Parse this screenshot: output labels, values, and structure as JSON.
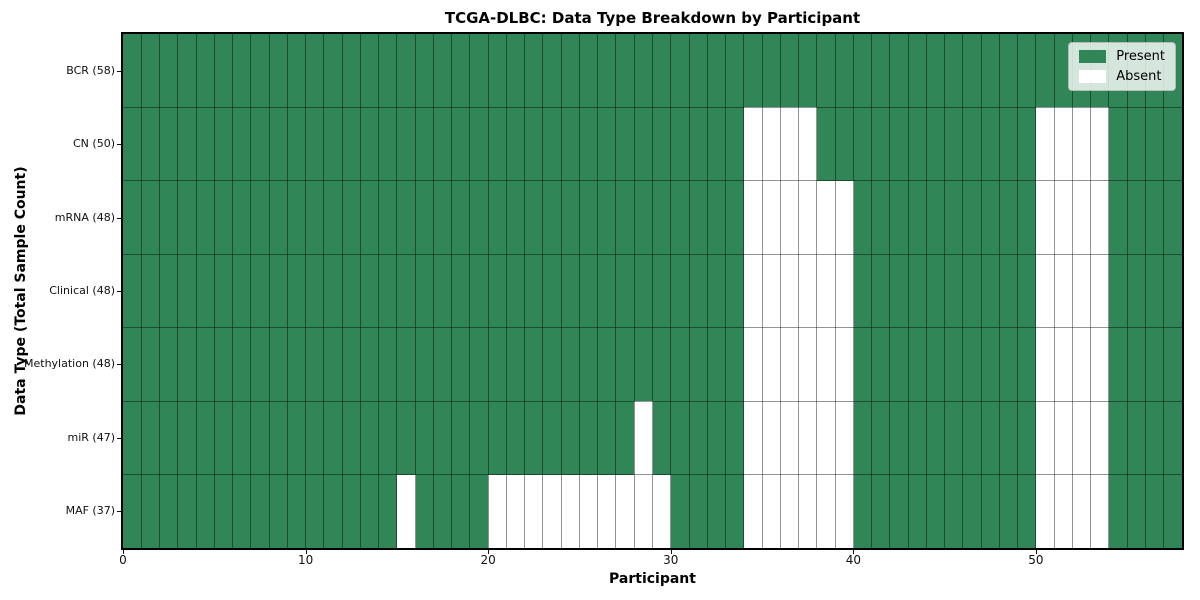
{
  "chart_data": {
    "type": "heatmap",
    "title": "TCGA-DLBC: Data Type Breakdown by Participant",
    "xlabel": "Participant",
    "ylabel": "Data Type (Total Sample Count)",
    "n_participants": 58,
    "x_range": [
      0,
      58
    ],
    "x_ticks": [
      0,
      10,
      20,
      30,
      40,
      50
    ],
    "grid": true,
    "legend_position": "upper right",
    "legend": [
      {
        "id": "present",
        "label": "Present",
        "color": "#318657"
      },
      {
        "id": "absent",
        "label": "Absent",
        "color": "#ffffff"
      }
    ],
    "rows": [
      {
        "label": "BCR (58)",
        "total_samples": 58,
        "absent_participants": []
      },
      {
        "label": "CN (50)",
        "total_samples": 50,
        "absent_participants": [
          34,
          35,
          36,
          37,
          50,
          51,
          52,
          53
        ]
      },
      {
        "label": "mRNA (48)",
        "total_samples": 48,
        "absent_participants": [
          34,
          35,
          36,
          37,
          38,
          39,
          50,
          51,
          52,
          53
        ]
      },
      {
        "label": "Clinical (48)",
        "total_samples": 48,
        "absent_participants": [
          34,
          35,
          36,
          37,
          38,
          39,
          50,
          51,
          52,
          53
        ]
      },
      {
        "label": "Methylation (48)",
        "total_samples": 48,
        "absent_participants": [
          34,
          35,
          36,
          37,
          38,
          39,
          50,
          51,
          52,
          53
        ]
      },
      {
        "label": "miR (47)",
        "total_samples": 47,
        "absent_participants": [
          28,
          34,
          35,
          36,
          37,
          38,
          39,
          50,
          51,
          52,
          53
        ]
      },
      {
        "label": "MAF (37)",
        "total_samples": 37,
        "absent_participants": [
          15,
          20,
          21,
          22,
          23,
          24,
          25,
          26,
          27,
          28,
          29,
          34,
          35,
          36,
          37,
          38,
          39,
          50,
          51,
          52,
          53
        ]
      }
    ]
  },
  "colors": {
    "present": "#318657",
    "absent": "#ffffff",
    "grid": "rgba(0,0,0,0.42)",
    "spine": "#000000"
  }
}
